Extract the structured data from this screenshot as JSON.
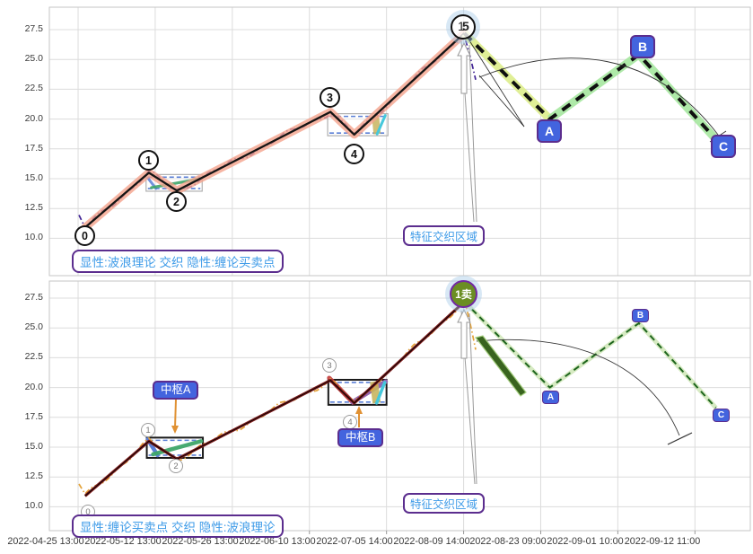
{
  "figure": {
    "y_ticks": [
      "27.5",
      "25.0",
      "22.5",
      "20.0",
      "17.5",
      "15.0",
      "12.5",
      "10.0"
    ],
    "x_ticks": [
      "2022-04-25 13:00",
      "2022-05-12 13:00",
      "2022-05-26 13:00",
      "2022-06-10 13:00",
      "2022-07-05 14:00",
      "2022-08-09 14:00",
      "2022-08-23 09:00",
      "2022-09-01 10:00",
      "2022-09-12 11:00"
    ],
    "panels": [
      {
        "note": "显性:波浪理论 交织 隐性:缠论买卖点",
        "region_label": "特征交织区域",
        "wave_labels": [
          "0",
          "1",
          "2",
          "3",
          "4"
        ],
        "peak": {
          "wave_label": "5",
          "hidden_label": "1"
        },
        "correction_labels": [
          "A",
          "B",
          "C"
        ]
      },
      {
        "note": "显性:缠论买卖点 交织 隐性:波浪理论",
        "region_label": "特征交织区域",
        "wave_labels": [
          "0",
          "1",
          "2",
          "3",
          "4"
        ],
        "sell_point_label": "1卖",
        "pivot_labels": [
          "中枢A",
          "中枢B"
        ],
        "correction_labels": [
          "A",
          "B",
          "C"
        ]
      }
    ],
    "colors": {
      "price_top": "#3F2193",
      "price_bottom": "#E4A33A",
      "trend_top_core": "#141414",
      "trend_top_glow": "#F4A28C",
      "trend_bottom": "#7E1C1C",
      "abc_top_glow1": "#DDED8C",
      "abc_top_glow2": "#A5E79E",
      "abc_bottom": "#1D651D",
      "zs_blue": "#5A7FD6",
      "zs_green": "#3FA66A",
      "zs_red": "#C23B3B",
      "zs_purple": "#8E6BBF",
      "zs_khaki": "#C8B560",
      "zs_cyan": "#45C8DC",
      "label_box": "#4364DE",
      "label_border": "#5B2D8E",
      "note_text": "#3E9BE8",
      "arrow_orange": "#E09133",
      "sell_fill": "#6B8E23"
    }
  },
  "chart_data": [
    {
      "type": "line",
      "panel": "top",
      "title_note": "显性:波浪理论 交织 隐性:缠论买卖点",
      "ylim": [
        8.6,
        28.9
      ],
      "y_ticks": [
        27.5,
        25.0,
        22.5,
        20.0,
        17.5,
        15.0,
        12.5,
        10.0
      ],
      "x_ticks": [
        "2022-04-25 13:00",
        "2022-05-12 13:00",
        "2022-05-26 13:00",
        "2022-06-10 13:00",
        "2022-07-05 14:00",
        "2022-08-09 14:00",
        "2022-08-23 09:00",
        "2022-09-01 10:00",
        "2022-09-12 11:00"
      ],
      "series": [
        {
          "name": "price",
          "style": "dash-dot",
          "color": "#3F2193",
          "description": "wiggly price line oscillating around the wave trend"
        },
        {
          "name": "elliott-wave-impulse",
          "labels": [
            "0",
            "1",
            "2",
            "3",
            "4",
            "5"
          ],
          "points": [
            {
              "f": 0.051,
              "v": 10.9
            },
            {
              "f": 0.142,
              "v": 15.5
            },
            {
              "f": 0.182,
              "v": 14.0
            },
            {
              "f": 0.401,
              "v": 20.6
            },
            {
              "f": 0.435,
              "v": 18.7
            },
            {
              "f": 0.592,
              "v": 27.2
            }
          ]
        },
        {
          "name": "elliott-wave-correction",
          "labels": [
            "A",
            "B",
            "C"
          ],
          "points": [
            {
              "f": 0.714,
              "v": 20.0
            },
            {
              "f": 0.841,
              "v": 25.4
            },
            {
              "f": 0.951,
              "v": 18.3
            }
          ]
        }
      ],
      "zhongshu_boxes": [
        {
          "f1": 0.138,
          "f2": 0.218,
          "v_high": 15.35,
          "v_low": 13.95
        },
        {
          "f1": 0.397,
          "f2": 0.483,
          "v_high": 20.45,
          "v_low": 18.6
        }
      ]
    },
    {
      "type": "line",
      "panel": "bottom",
      "title_note": "显性:缠论买卖点 交织 隐性:波浪理论",
      "ylim": [
        8.6,
        28.9
      ],
      "y_ticks": [
        27.5,
        25.0,
        22.5,
        20.0,
        17.5,
        15.0,
        12.5,
        10.0
      ],
      "x_ticks": [
        "2022-04-25 13:00",
        "2022-05-12 13:00",
        "2022-05-26 13:00",
        "2022-06-10 13:00",
        "2022-07-05 14:00",
        "2022-08-09 14:00",
        "2022-08-23 09:00",
        "2022-09-01 10:00",
        "2022-09-12 11:00"
      ],
      "series": [
        {
          "name": "price",
          "style": "dash-dot",
          "color": "#E4A33A",
          "description": "wiggly price line oscillating around the segment trend"
        },
        {
          "name": "chan-segments",
          "labels": [
            "0",
            "1",
            "2",
            "3",
            "4",
            "1卖"
          ],
          "points": [
            {
              "f": 0.051,
              "v": 10.9
            },
            {
              "f": 0.142,
              "v": 15.5
            },
            {
              "f": 0.182,
              "v": 14.0
            },
            {
              "f": 0.401,
              "v": 20.6
            },
            {
              "f": 0.435,
              "v": 18.7
            },
            {
              "f": 0.592,
              "v": 27.2
            }
          ]
        },
        {
          "name": "hidden-correction",
          "labels": [
            "A",
            "B",
            "C"
          ],
          "points": [
            {
              "f": 0.714,
              "v": 20.0
            },
            {
              "f": 0.841,
              "v": 25.4
            },
            {
              "f": 0.951,
              "v": 18.3
            }
          ]
        }
      ],
      "zhongshu_boxes": [
        {
          "label": "中枢A",
          "f1": 0.139,
          "f2": 0.219,
          "v_high": 15.8,
          "v_low": 14.1
        },
        {
          "label": "中枢B",
          "f1": 0.398,
          "f2": 0.481,
          "v_high": 20.65,
          "v_low": 18.55
        }
      ]
    }
  ]
}
